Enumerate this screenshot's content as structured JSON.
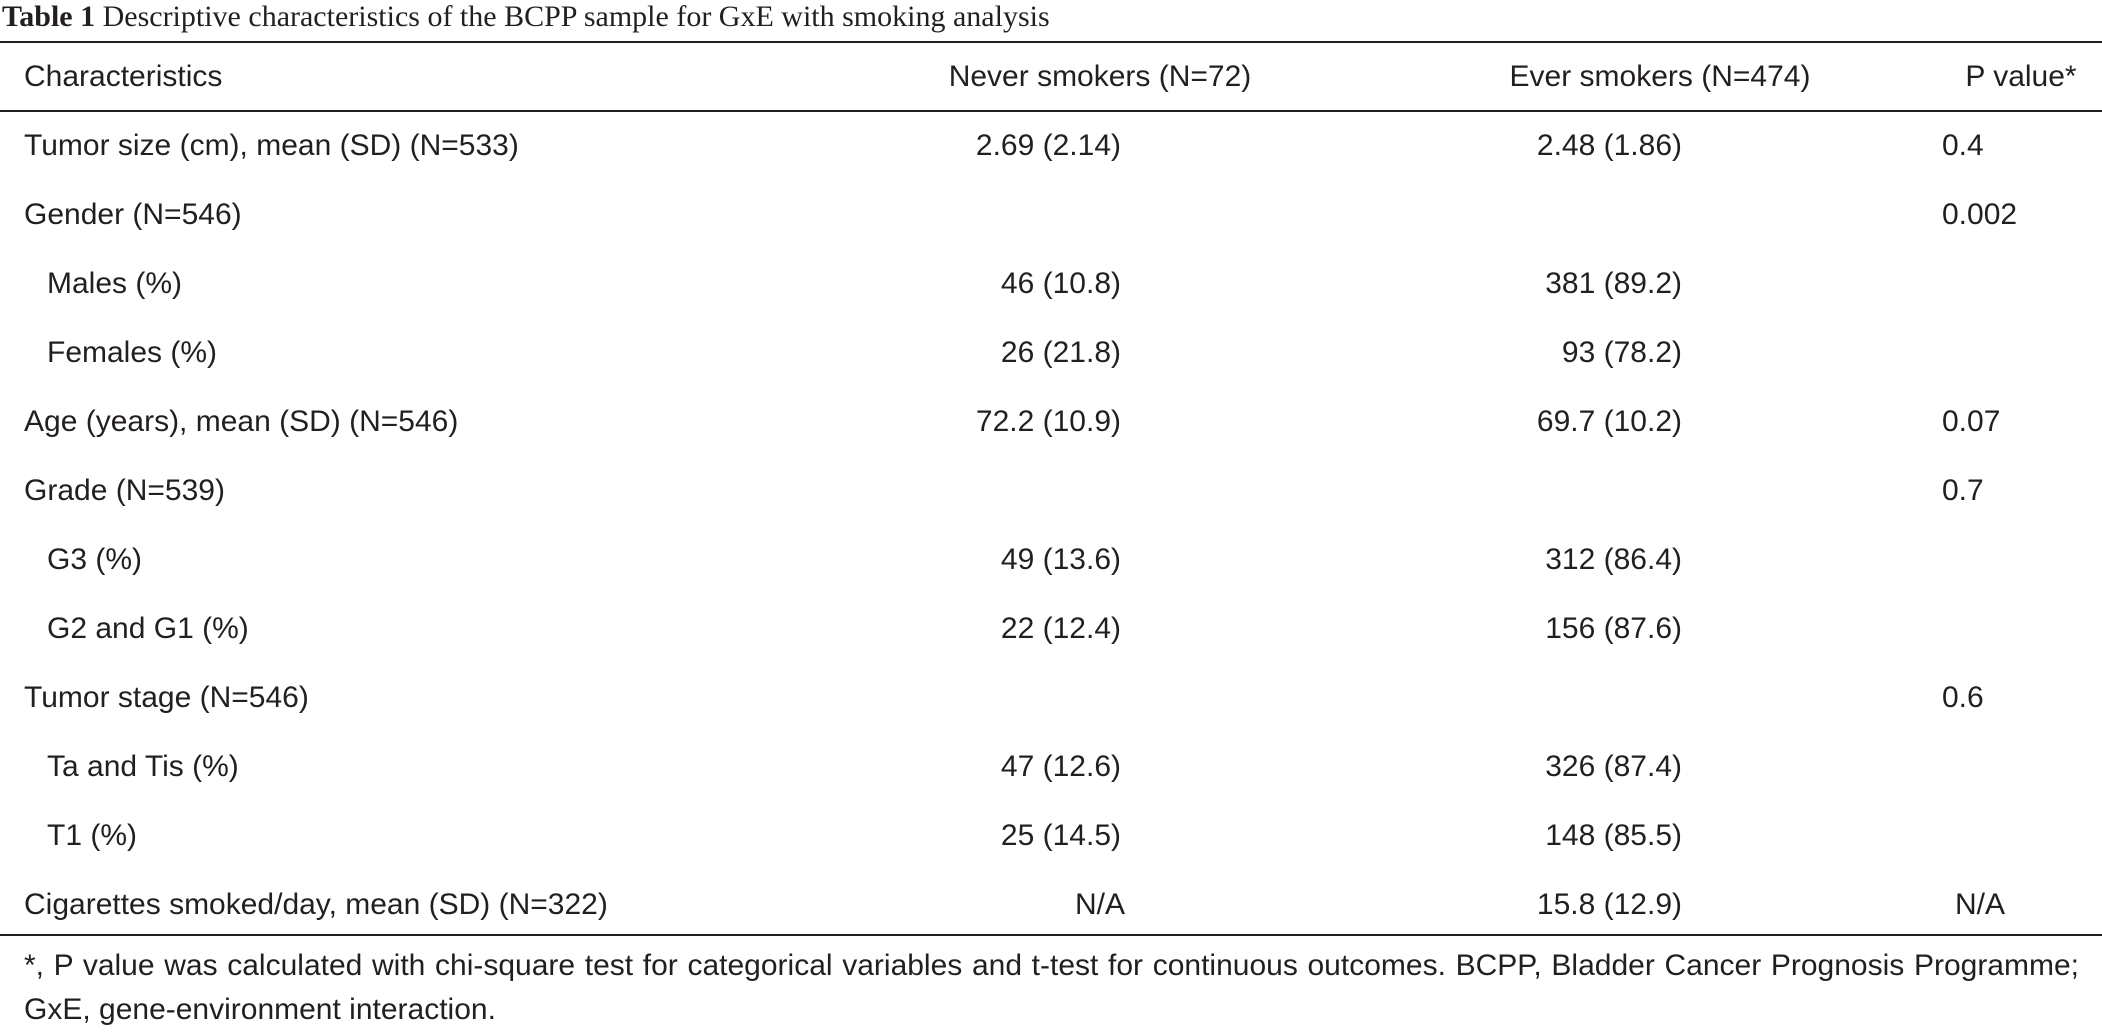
{
  "caption": {
    "label": "Table 1",
    "text": "Descriptive characteristics of the BCPP sample for GxE with smoking analysis"
  },
  "table": {
    "headers": [
      "Characteristics",
      "Never smokers (N=72)",
      "Ever smokers (N=474)",
      "P value*"
    ],
    "rows": [
      {
        "label": "Tumor size (cm), mean (SD) (N=533)",
        "never": "2.69 (2.14)",
        "ever": "2.48 (1.86)",
        "p": "0.4"
      },
      {
        "label": "Gender (N=546)",
        "never": "",
        "ever": "",
        "p": "0.002"
      },
      {
        "label": "Males (%)",
        "never": "46 (10.8)",
        "ever": "381 (89.2)",
        "p": ""
      },
      {
        "label": "Females (%)",
        "never": "26 (21.8)",
        "ever": "93 (78.2)",
        "p": ""
      },
      {
        "label": "Age (years), mean (SD) (N=546)",
        "never": "72.2 (10.9)",
        "ever": "69.7 (10.2)",
        "p": "0.07"
      },
      {
        "label": "Grade (N=539)",
        "never": "",
        "ever": "",
        "p": "0.7"
      },
      {
        "label": "G3 (%)",
        "never": "49 (13.6)",
        "ever": "312 (86.4)",
        "p": ""
      },
      {
        "label": "G2 and G1 (%)",
        "never": "22 (12.4)",
        "ever": "156 (87.6)",
        "p": ""
      },
      {
        "label": "Tumor stage (N=546)",
        "never": "",
        "ever": "",
        "p": "0.6"
      },
      {
        "label": "Ta and Tis (%)",
        "never": "47 (12.6)",
        "ever": "326 (87.4)",
        "p": ""
      },
      {
        "label": "T1 (%)",
        "never": "25 (14.5)",
        "ever": "148 (85.5)",
        "p": ""
      },
      {
        "label": "Cigarettes smoked/day, mean (SD) (N=322)",
        "never": "N/A",
        "ever": "15.8 (12.9)",
        "p": "N/A"
      }
    ]
  },
  "footnote": "*, P value was calculated with chi-square test for categorical variables and t-test for continuous outcomes. BCPP, Bladder Cancer Prognosis Programme; GxE, gene-environment interaction."
}
